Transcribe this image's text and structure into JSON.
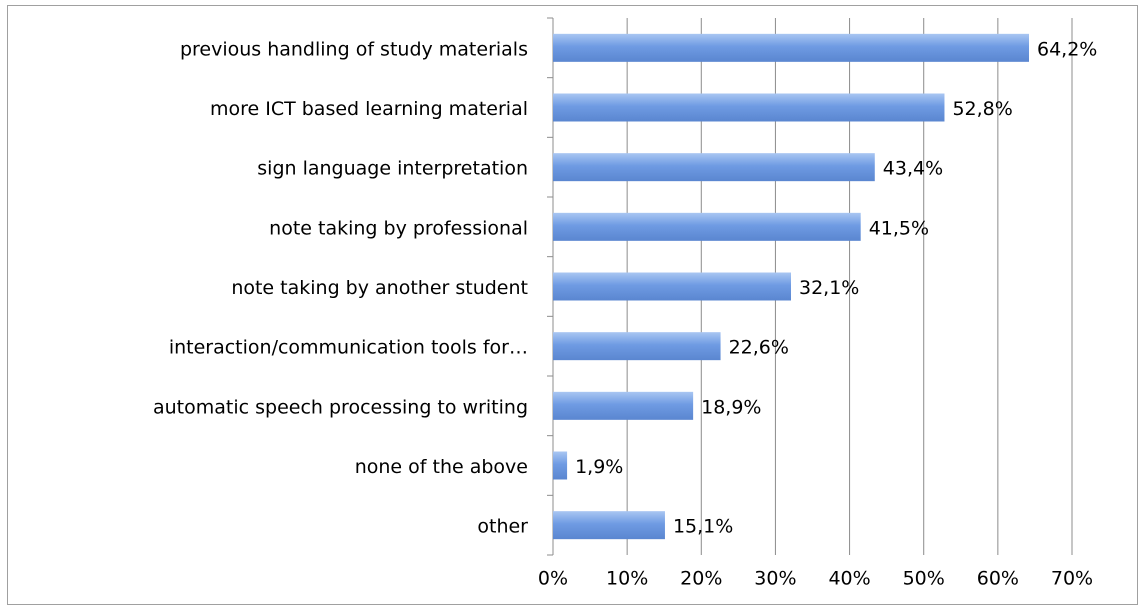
{
  "chart_data": {
    "type": "bar",
    "orientation": "horizontal",
    "categories": [
      "previous handling of study materials",
      "more ICT based learning material",
      "sign language interpretation",
      "note taking by professional",
      "note taking by another student",
      "interaction/communication tools for…",
      "automatic speech processing to writing",
      "none of the above",
      "other"
    ],
    "values": [
      64.2,
      52.8,
      43.4,
      41.5,
      32.1,
      22.6,
      18.9,
      1.9,
      15.1
    ],
    "value_labels": [
      "64,2%",
      "52,8%",
      "43,4%",
      "41,5%",
      "32,1%",
      "22,6%",
      "18,9%",
      "1,9%",
      "15,1%"
    ],
    "color": "#6f9be3",
    "xlim": [
      0,
      70
    ],
    "xticks": [
      {
        "value": 0,
        "label": "0%"
      },
      {
        "value": 10,
        "label": "10%"
      },
      {
        "value": 20,
        "label": "20%"
      },
      {
        "value": 30,
        "label": "30%"
      },
      {
        "value": 40,
        "label": "40%"
      },
      {
        "value": 50,
        "label": "50%"
      },
      {
        "value": 60,
        "label": "60%"
      },
      {
        "value": 70,
        "label": "70%"
      }
    ],
    "grid": true
  }
}
